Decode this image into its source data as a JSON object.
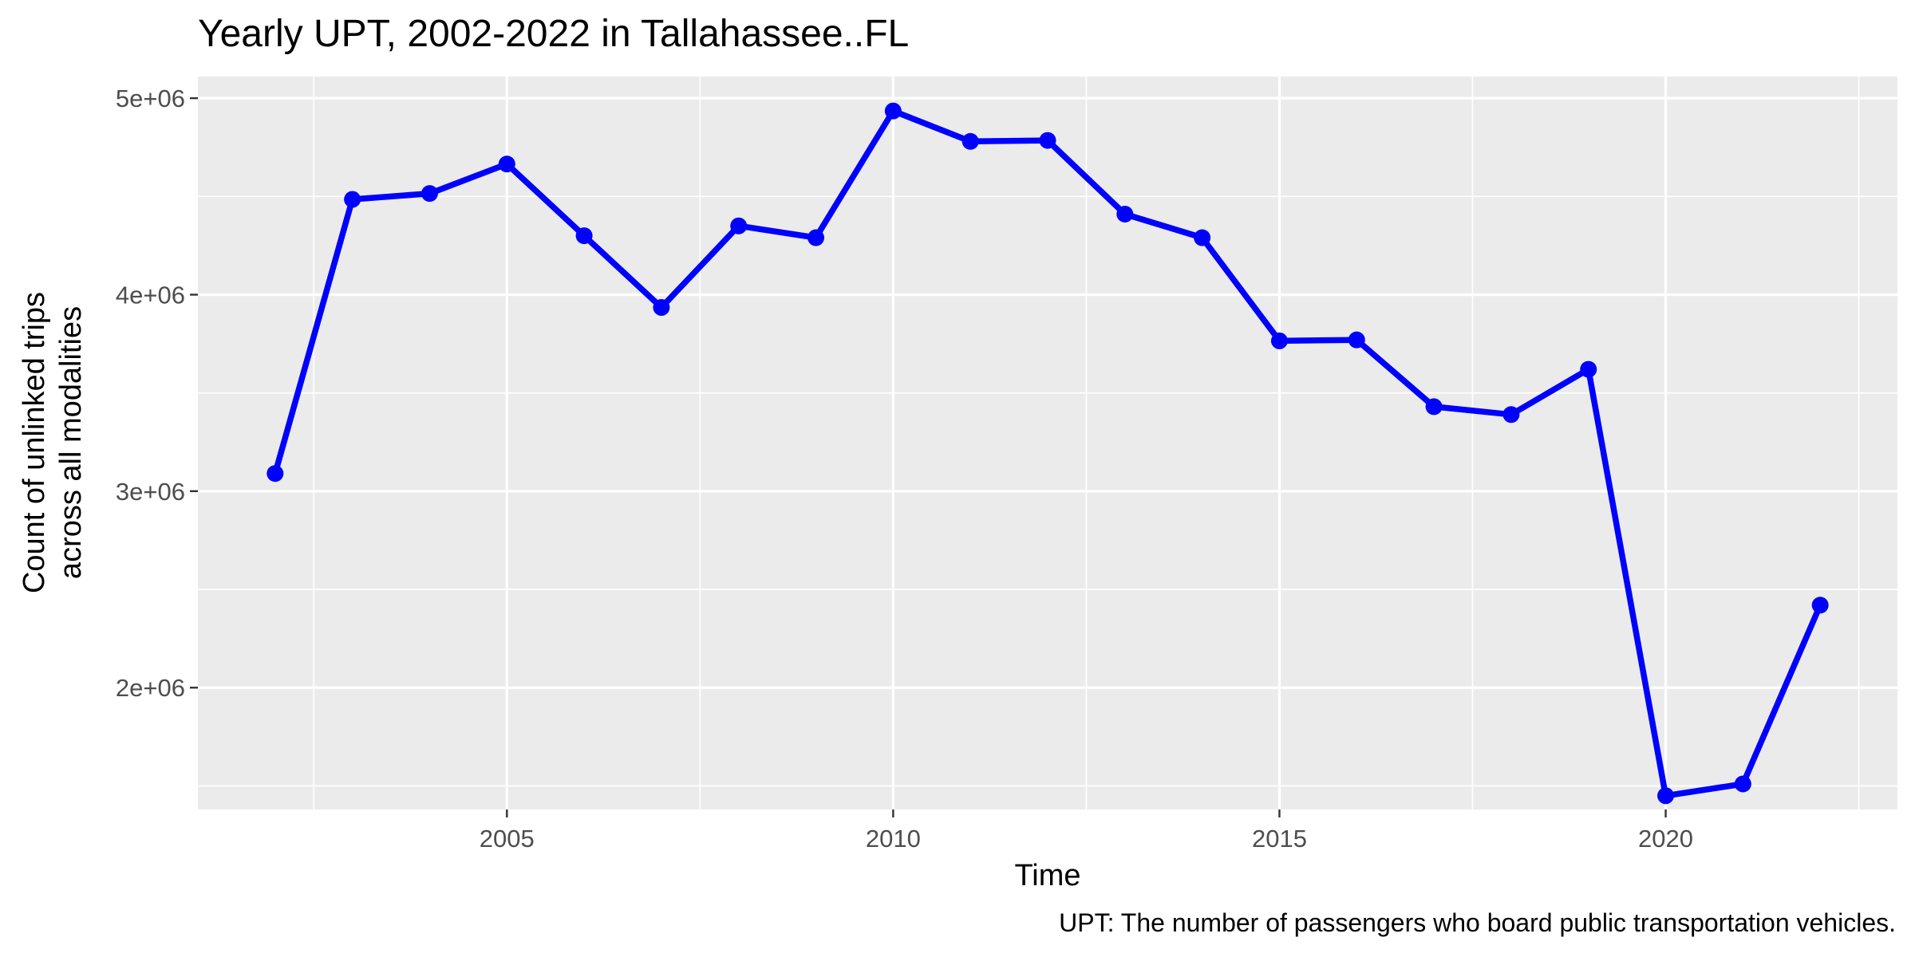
{
  "chart_data": {
    "type": "line",
    "title": "Yearly UPT, 2002-2022 in Tallahassee..FL",
    "xlabel": "Time",
    "ylabel_lines": [
      "Count of unlinked trips",
      "across all modalities"
    ],
    "caption": "UPT: The number of passengers who board public transportation vehicles.",
    "x_ticks": [
      2005,
      2010,
      2015,
      2020
    ],
    "x_tick_labels": [
      "2005",
      "2010",
      "2015",
      "2020"
    ],
    "y_ticks": [
      2000000,
      3000000,
      4000000,
      5000000
    ],
    "y_tick_labels": [
      "2e+06",
      "3e+06",
      "4e+06",
      "5e+06"
    ],
    "xlim": [
      2001,
      2023
    ],
    "ylim": [
      1380000,
      5110000
    ],
    "grid": true,
    "series": [
      {
        "color": "#0000FF",
        "x": [
          2002,
          2003,
          2004,
          2005,
          2006,
          2007,
          2008,
          2009,
          2010,
          2011,
          2012,
          2013,
          2014,
          2015,
          2016,
          2017,
          2018,
          2019,
          2020,
          2021,
          2022
        ],
        "values": [
          3090000,
          4485000,
          4515000,
          4665000,
          4300000,
          3935000,
          4350000,
          4290000,
          4935000,
          4780000,
          4785000,
          4410000,
          4290000,
          3765000,
          3770000,
          3430000,
          3390000,
          3620000,
          1450000,
          1510000,
          2420000
        ]
      }
    ]
  },
  "colors": {
    "panel_background": "#EBEBEB",
    "grid": "#FFFFFF",
    "series": "#0000FF",
    "axis_text": "#4D4D4D",
    "title_text": "#000000"
  }
}
